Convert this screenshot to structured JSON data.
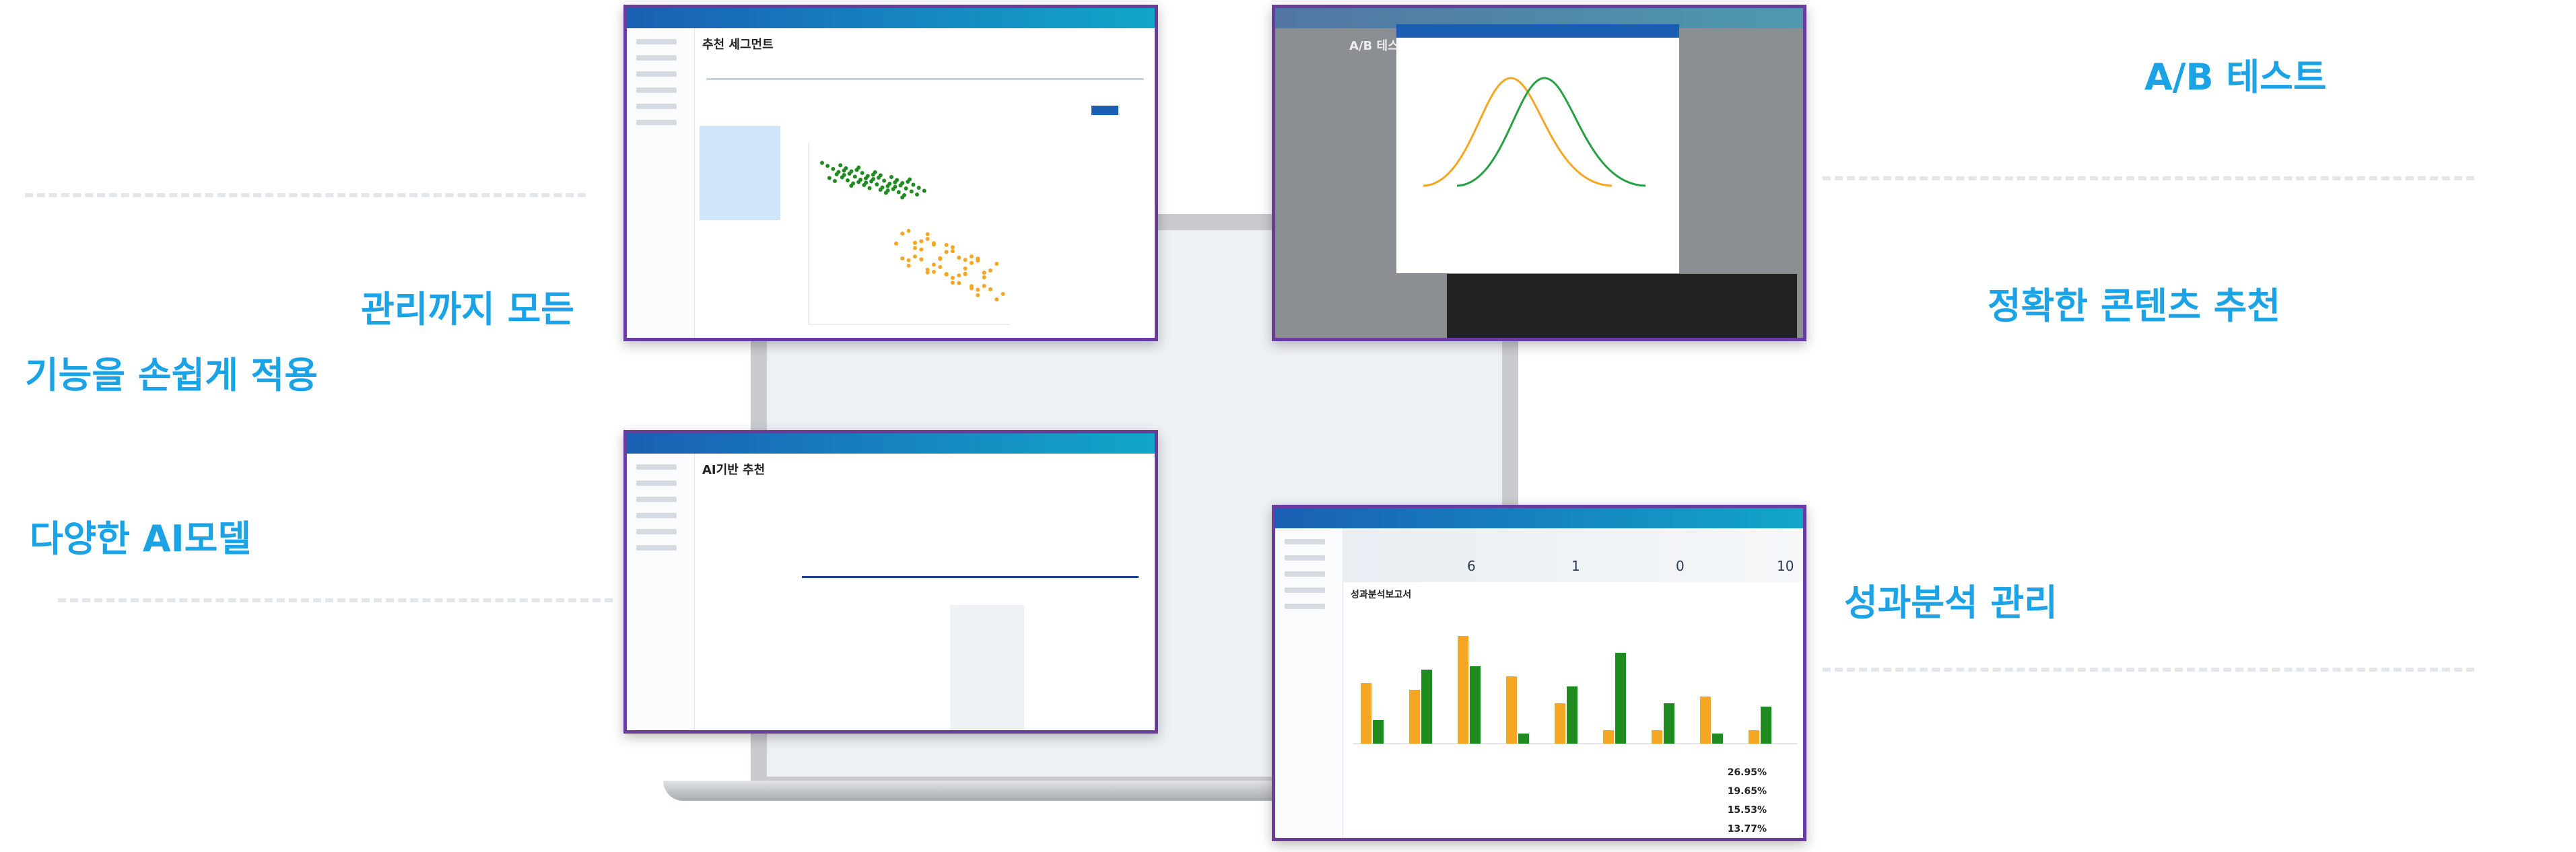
{
  "headlines": {
    "left": [
      "관리까지 모든",
      "기능을 손쉽게 적용",
      "다양한 AI모델"
    ],
    "right": [
      "A/B 테스트",
      "정확한 콘텐츠 추천",
      "성과분석 관리"
    ]
  },
  "screens": {
    "segment": {
      "title": "추천 세그먼트"
    },
    "ab_test": {
      "title": "A/B 테스트"
    },
    "ai_reco": {
      "title": "AI기반 추천"
    },
    "report": {
      "title": "성과분석보고서",
      "stats": [
        6,
        1,
        0,
        10
      ],
      "top_rates": [
        "26.95%",
        "19.65%",
        "15.53%",
        "13.77%"
      ]
    }
  }
}
